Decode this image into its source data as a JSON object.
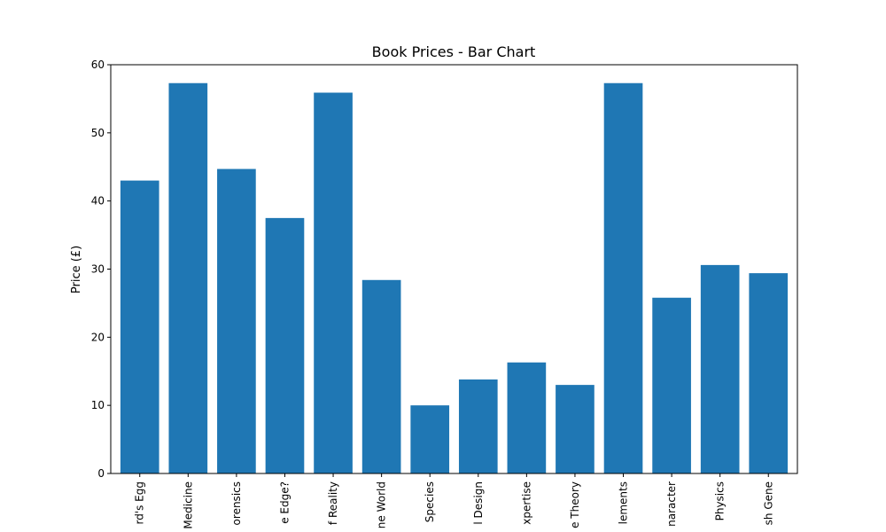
{
  "chart_data": {
    "type": "bar",
    "title": "Book Prices - Bar Chart",
    "xlabel": "",
    "ylabel": "Price (£)",
    "ylim": [
      0,
      60
    ],
    "yticks": [
      0,
      10,
      20,
      30,
      40,
      50,
      60
    ],
    "grid": false,
    "legend": "none",
    "bar_color": "#1f77b4",
    "categories": [
      "rd's Egg",
      "Medicine",
      "orensics",
      "e Edge?",
      "f Reality",
      "ne World",
      "Species",
      "l Design",
      "xpertise",
      "e Theory",
      "lements",
      "naracter",
      "Physics",
      "sh Gene"
    ],
    "values": [
      43.0,
      57.3,
      44.7,
      37.5,
      55.9,
      28.4,
      10.0,
      13.8,
      16.3,
      13.0,
      57.3,
      25.8,
      30.6,
      29.4
    ]
  }
}
